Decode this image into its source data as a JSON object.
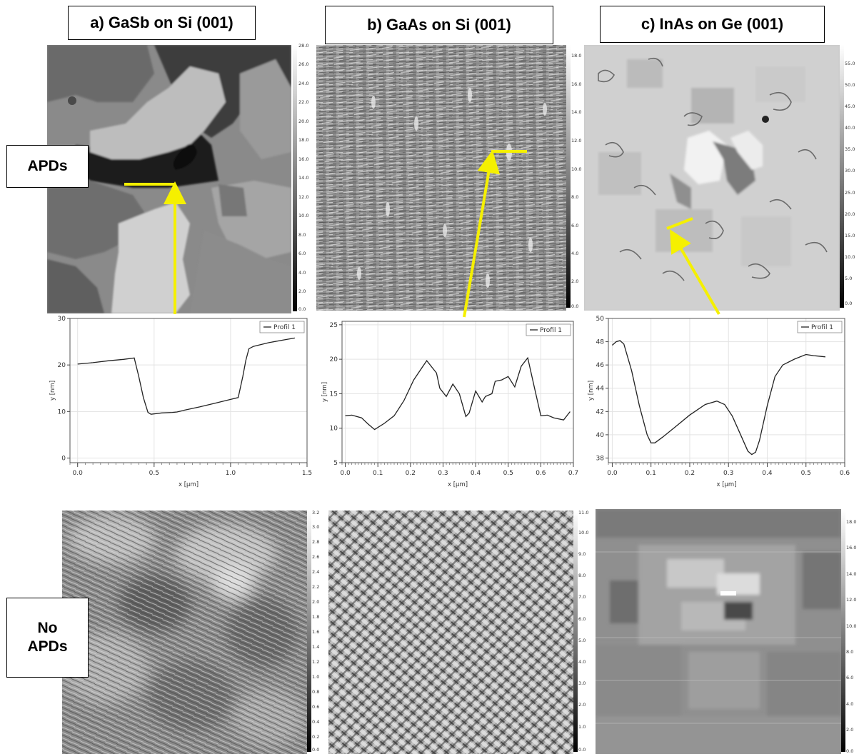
{
  "columns": [
    {
      "label": "a) GaSb on Si (001)"
    },
    {
      "label": "b) GaAs on Si (001)"
    },
    {
      "label": "c) InAs on Ge (001)"
    }
  ],
  "rows": {
    "apds": {
      "label": "APDs"
    },
    "no_apds": {
      "line1": "No",
      "line2": "APDs"
    }
  },
  "afm_scales": {
    "a_top": [
      "28.0",
      "26.0",
      "24.0",
      "22.0",
      "20.0",
      "18.0",
      "16.0",
      "14.0",
      "12.0",
      "10.0",
      "8.0",
      "6.0",
      "4.0",
      "2.0",
      "0.0"
    ],
    "b_top": [
      "18.0",
      "16.0",
      "14.0",
      "12.0",
      "10.0",
      "8.0",
      "6.0",
      "4.0",
      "2.0",
      "0.0"
    ],
    "c_top": [
      "55.0",
      "50.0",
      "45.0",
      "40.0",
      "35.0",
      "30.0",
      "25.0",
      "20.0",
      "15.0",
      "10.0",
      "5.0",
      "0.0"
    ],
    "a_bot": [
      "3.2",
      "3.0",
      "2.8",
      "2.6",
      "2.4",
      "2.2",
      "2.0",
      "1.8",
      "1.6",
      "1.4",
      "1.2",
      "1.0",
      "0.8",
      "0.6",
      "0.4",
      "0.2",
      "0.0"
    ],
    "b_bot": [
      "11.0",
      "10.0",
      "9.0",
      "8.0",
      "7.0",
      "6.0",
      "5.0",
      "4.0",
      "3.0",
      "2.0",
      "1.0",
      "0.0"
    ],
    "c_bot": [
      "18.0",
      "16.0",
      "14.0",
      "12.0",
      "10.0",
      "8.0",
      "6.0",
      "4.0",
      "2.0",
      "0.0"
    ]
  },
  "accent_color": "#f5f000",
  "chart_data": [
    {
      "type": "line",
      "xlabel": "x [µm]",
      "ylabel": "y [nm]",
      "xlim": [
        -0.05,
        1.5
      ],
      "ylim": [
        -1,
        30
      ],
      "xticks": [
        "0.0",
        "0.5",
        "1.0",
        "1.5"
      ],
      "yticks": [
        "0",
        "10",
        "20",
        "30"
      ],
      "xtick_values": [
        0,
        0.5,
        1.0,
        1.5
      ],
      "ytick_values": [
        0,
        10,
        20,
        30
      ],
      "grid": true,
      "legend": "top-right",
      "series": [
        {
          "name": "Profil 1",
          "x": [
            0.0,
            0.1,
            0.2,
            0.3,
            0.37,
            0.4,
            0.43,
            0.46,
            0.48,
            0.55,
            0.62,
            0.65,
            0.7,
            0.8,
            0.9,
            1.0,
            1.05,
            1.08,
            1.1,
            1.12,
            1.15,
            1.25,
            1.35,
            1.42
          ],
          "y": [
            20.2,
            20.5,
            20.9,
            21.2,
            21.5,
            17.5,
            13.0,
            9.8,
            9.4,
            9.7,
            9.8,
            9.9,
            10.3,
            11.0,
            11.8,
            12.6,
            13.0,
            17.5,
            21.0,
            23.5,
            24.0,
            24.8,
            25.4,
            25.8
          ]
        }
      ]
    },
    {
      "type": "line",
      "xlabel": "x [µm]",
      "ylabel": "y [nm]",
      "xlim": [
        -0.01,
        0.7
      ],
      "ylim": [
        5,
        25.5
      ],
      "xticks": [
        "0.0",
        "0.1",
        "0.2",
        "0.3",
        "0.4",
        "0.5",
        "0.6",
        "0.7"
      ],
      "yticks": [
        "5",
        "10",
        "15",
        "20",
        "25"
      ],
      "xtick_values": [
        0,
        0.1,
        0.2,
        0.3,
        0.4,
        0.5,
        0.6,
        0.7
      ],
      "ytick_values": [
        5,
        10,
        15,
        20,
        25
      ],
      "grid": true,
      "legend": "top-right",
      "series": [
        {
          "name": "Profil 1",
          "x": [
            0.0,
            0.02,
            0.05,
            0.07,
            0.09,
            0.12,
            0.15,
            0.18,
            0.21,
            0.25,
            0.28,
            0.29,
            0.31,
            0.33,
            0.35,
            0.37,
            0.38,
            0.4,
            0.42,
            0.43,
            0.45,
            0.46,
            0.48,
            0.5,
            0.52,
            0.54,
            0.56,
            0.58,
            0.6,
            0.62,
            0.64,
            0.67,
            0.69
          ],
          "y": [
            11.8,
            11.9,
            11.5,
            10.6,
            9.8,
            10.7,
            11.8,
            14.0,
            17.0,
            19.8,
            18.0,
            15.8,
            14.6,
            16.4,
            15.0,
            11.7,
            12.2,
            15.4,
            13.8,
            14.6,
            15.0,
            16.8,
            17.0,
            17.5,
            16.0,
            19.0,
            20.2,
            16.0,
            11.8,
            11.9,
            11.5,
            11.2,
            12.4
          ]
        }
      ]
    },
    {
      "type": "line",
      "xlabel": "x [µm]",
      "ylabel": "y [nm]",
      "xlim": [
        -0.01,
        0.6
      ],
      "ylim": [
        37.6,
        50
      ],
      "xticks": [
        "0.0",
        "0.1",
        "0.2",
        "0.3",
        "0.4",
        "0.5",
        "0.6"
      ],
      "yticks": [
        "38",
        "40",
        "42",
        "44",
        "46",
        "48",
        "50"
      ],
      "xtick_values": [
        0,
        0.1,
        0.2,
        0.3,
        0.4,
        0.5,
        0.6
      ],
      "ytick_values": [
        38,
        40,
        42,
        44,
        46,
        48,
        50
      ],
      "grid": true,
      "legend": "top-right",
      "series": [
        {
          "name": "Profil 1",
          "x": [
            0.0,
            0.01,
            0.02,
            0.03,
            0.05,
            0.07,
            0.09,
            0.1,
            0.11,
            0.13,
            0.16,
            0.2,
            0.24,
            0.27,
            0.29,
            0.31,
            0.33,
            0.35,
            0.36,
            0.37,
            0.38,
            0.4,
            0.42,
            0.44,
            0.47,
            0.5,
            0.52,
            0.55
          ],
          "y": [
            47.7,
            48.0,
            48.1,
            47.8,
            45.5,
            42.5,
            40.0,
            39.3,
            39.3,
            39.8,
            40.6,
            41.7,
            42.6,
            42.9,
            42.6,
            41.6,
            40.1,
            38.6,
            38.3,
            38.5,
            39.5,
            42.5,
            45.0,
            46.0,
            46.5,
            46.9,
            46.8,
            46.7
          ]
        }
      ]
    }
  ]
}
